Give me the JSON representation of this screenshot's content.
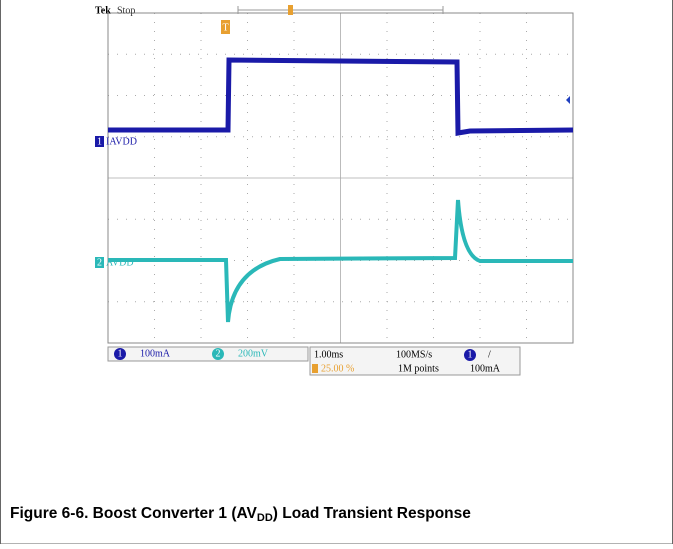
{
  "scope": {
    "brand": "Tek",
    "status": "Stop",
    "trigger_marker": "T",
    "ch1": {
      "number": "1",
      "label": "IAVDD",
      "scale": "100mA"
    },
    "ch2": {
      "number": "2",
      "label": "AVDD",
      "scale": "200mV"
    },
    "timebase": "1.00ms",
    "sample_rate": "100MS/s",
    "trigger_position": "25.00 %",
    "record_length": "1M points",
    "trigger_source": "1",
    "trigger_slope": "/",
    "trigger_level": "100mA"
  },
  "caption": {
    "prefix": "Figure 6-6. Boost Converter 1 (AV",
    "subscript": "DD",
    "suffix": ") Load Transient Response"
  }
}
